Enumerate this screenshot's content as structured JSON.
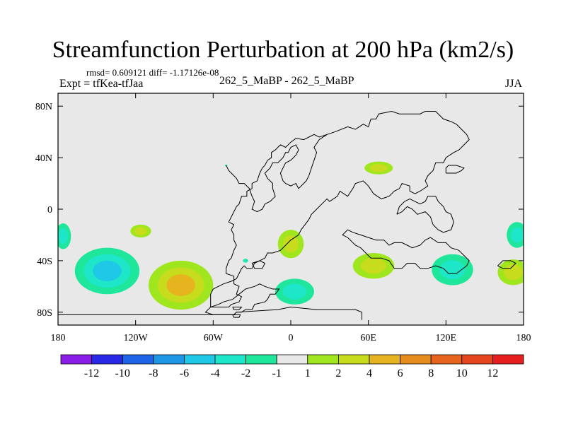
{
  "title": "Streamfunction Perturbation at 200 hPa (km2/s)",
  "stats_line": "rmsd= 0.609121 diff= -1.17126e-08",
  "expt_label": "Expt = tfKea-tfJaa",
  "experiment": "262_5_MaBP - 262_5_MaBP",
  "season": "JJA",
  "colors": {
    "background": "#e8e8e8",
    "coastline": "#000000"
  },
  "chart_data": {
    "type": "heatmap",
    "projection": "cylindrical-equidistant",
    "xlim": [
      -180,
      180
    ],
    "ylim": [
      -90,
      90
    ],
    "x_ticks": [
      {
        "value": -180,
        "label": "180"
      },
      {
        "value": -120,
        "label": "120W"
      },
      {
        "value": -60,
        "label": "60W"
      },
      {
        "value": 0,
        "label": "0"
      },
      {
        "value": 60,
        "label": "60E"
      },
      {
        "value": 120,
        "label": "120E"
      },
      {
        "value": 180,
        "label": "180"
      }
    ],
    "y_ticks": [
      {
        "value": 80,
        "label": "80N"
      },
      {
        "value": 40,
        "label": "40N"
      },
      {
        "value": 0,
        "label": "0"
      },
      {
        "value": -40,
        "label": "40S"
      },
      {
        "value": -80,
        "label": "80S"
      }
    ],
    "colorbar": {
      "labels": [
        "-12",
        "-10",
        "-8",
        "-6",
        "-4",
        "-2",
        "-1",
        "1",
        "2",
        "4",
        "6",
        "8",
        "10",
        "12"
      ],
      "colors": [
        "#8a1ee6",
        "#2828e6",
        "#1e64e6",
        "#1e96e6",
        "#1ec8e6",
        "#1ee6c8",
        "#1ee69a",
        "#e8e8e8",
        "#a0e61e",
        "#c8dc1e",
        "#e6b41e",
        "#e68c1e",
        "#e6641e",
        "#e6461e",
        "#e61e1e"
      ]
    },
    "features": [
      {
        "name": "South Pacific high",
        "lon": -85,
        "lat": -59,
        "rx": 25,
        "ry": 19,
        "value": 5
      },
      {
        "name": "South Pacific low",
        "lon": -142,
        "lat": -48,
        "rx": 25,
        "ry": 18,
        "value": -4
      },
      {
        "name": "Dateline low west",
        "lon": -176,
        "lat": -21,
        "rx": 6,
        "ry": 10,
        "value": -2
      },
      {
        "name": "Dateline low east",
        "lon": 175,
        "lat": -20,
        "rx": 8,
        "ry": 10,
        "value": -3
      },
      {
        "name": "Tropical Pacific high",
        "lon": -116,
        "lat": -17,
        "rx": 8,
        "ry": 5,
        "value": 2
      },
      {
        "name": "South Atlantic high",
        "lon": 0,
        "lat": -27,
        "rx": 10,
        "ry": 11,
        "value": 2
      },
      {
        "name": "Drake Passage low",
        "lon": 3,
        "lat": -64,
        "rx": 15,
        "ry": 10,
        "value": -2
      },
      {
        "name": "Madagascar high",
        "lon": 64,
        "lat": -44,
        "rx": 16,
        "ry": 10,
        "value": 2
      },
      {
        "name": "Indian Ocean low",
        "lon": 125,
        "lat": -47,
        "rx": 16,
        "ry": 12,
        "value": -2
      },
      {
        "name": "Southern Ocean high",
        "lon": 172,
        "lat": -49,
        "rx": 12,
        "ry": 10,
        "value": 2
      },
      {
        "name": "Asia high",
        "lon": 68,
        "lat": 32,
        "rx": 11,
        "ry": 5,
        "value": 2
      },
      {
        "name": "Atlantic speck low",
        "lon": -35,
        "lat": -40,
        "rx": 2,
        "ry": 1.5,
        "value": -2
      },
      {
        "name": "North Atlantic speck",
        "lon": -50,
        "lat": 34,
        "rx": 1,
        "ry": 0.6,
        "value": -2
      }
    ],
    "coastlines": [
      [
        [
          -44,
          -82
        ],
        [
          -42,
          -80
        ],
        [
          -38,
          -80
        ],
        [
          -35,
          -78
        ],
        [
          -30,
          -78
        ],
        [
          -28,
          -74
        ],
        [
          -20,
          -72
        ],
        [
          -18,
          -70
        ],
        [
          -16,
          -66
        ],
        [
          -12,
          -66
        ],
        [
          -9,
          -62
        ],
        [
          -14,
          -62
        ],
        [
          -20,
          -60
        ],
        [
          -24,
          -58
        ],
        [
          -28,
          -60
        ],
        [
          -35,
          -62
        ],
        [
          -40,
          -66
        ],
        [
          -45,
          -70
        ],
        [
          -52,
          -72
        ],
        [
          -56,
          -74
        ],
        [
          -62,
          -76
        ],
        [
          -66,
          -80
        ],
        [
          -60,
          -82
        ],
        [
          -50,
          -82
        ],
        [
          -44,
          -82
        ]
      ],
      [
        [
          -180,
          -86
        ],
        [
          -180,
          -82
        ],
        [
          -44,
          -82
        ],
        [
          -42,
          -80
        ],
        [
          -10,
          -78
        ],
        [
          0,
          -76
        ],
        [
          20,
          -78
        ],
        [
          50,
          -78
        ],
        [
          55,
          -80
        ],
        [
          55,
          -86
        ]
      ],
      [
        [
          -45,
          -76
        ],
        [
          -44,
          -78
        ],
        [
          -40,
          -78
        ],
        [
          -38,
          -76
        ],
        [
          -45,
          -76
        ]
      ],
      [
        [
          -45,
          -82
        ],
        [
          -44,
          -84
        ],
        [
          -40,
          -84
        ],
        [
          -39,
          -82
        ],
        [
          -45,
          -82
        ]
      ],
      [
        [
          -62,
          -76
        ],
        [
          -48,
          -76
        ],
        [
          -46,
          -74
        ],
        [
          -40,
          -72
        ],
        [
          -38,
          -68
        ],
        [
          -42,
          -66
        ],
        [
          -40,
          -60
        ],
        [
          -44,
          -58
        ],
        [
          -44,
          -52
        ],
        [
          -50,
          -50
        ],
        [
          -50,
          -46
        ],
        [
          -48,
          -40
        ],
        [
          -46,
          -38
        ],
        [
          -44,
          -32
        ],
        [
          -42,
          -28
        ],
        [
          -44,
          -24
        ],
        [
          -44,
          -20
        ],
        [
          -46,
          -16
        ],
        [
          -44,
          -12
        ],
        [
          -48,
          -10
        ],
        [
          -46,
          -6
        ],
        [
          -44,
          -2
        ],
        [
          -42,
          2
        ],
        [
          -40,
          4
        ],
        [
          -38,
          10
        ],
        [
          -34,
          10
        ],
        [
          -34,
          14
        ],
        [
          -30,
          16
        ],
        [
          -30,
          20
        ],
        [
          -26,
          22
        ],
        [
          -24,
          28
        ],
        [
          -22,
          32
        ],
        [
          -20,
          34
        ],
        [
          -18,
          38
        ],
        [
          -15,
          40
        ],
        [
          -15,
          44
        ],
        [
          -12,
          46
        ],
        [
          -10,
          48
        ],
        [
          -8,
          50
        ],
        [
          -4,
          48
        ],
        [
          0,
          52
        ],
        [
          4,
          55
        ],
        [
          10,
          54
        ],
        [
          14,
          56
        ],
        [
          18,
          58
        ],
        [
          22,
          56
        ],
        [
          28,
          58
        ],
        [
          34,
          60
        ],
        [
          44,
          64
        ],
        [
          50,
          62
        ],
        [
          56,
          66
        ],
        [
          60,
          64
        ],
        [
          62,
          70
        ],
        [
          66,
          70
        ],
        [
          68,
          74
        ],
        [
          78,
          76
        ],
        [
          84,
          74
        ],
        [
          100,
          74
        ],
        [
          104,
          76
        ],
        [
          112,
          76
        ],
        [
          118,
          70
        ],
        [
          124,
          68
        ],
        [
          128,
          66
        ],
        [
          132,
          62
        ],
        [
          136,
          58
        ],
        [
          138,
          54
        ],
        [
          134,
          50
        ],
        [
          130,
          46
        ],
        [
          126,
          44
        ],
        [
          120,
          40
        ],
        [
          118,
          36
        ],
        [
          112,
          36
        ],
        [
          110,
          30
        ],
        [
          106,
          26
        ],
        [
          104,
          22
        ],
        [
          106,
          18
        ],
        [
          100,
          14
        ],
        [
          96,
          12
        ],
        [
          92,
          14
        ],
        [
          92,
          18
        ],
        [
          86,
          20
        ],
        [
          84,
          16
        ],
        [
          80,
          14
        ],
        [
          76,
          10
        ],
        [
          70,
          8
        ],
        [
          64,
          12
        ],
        [
          60,
          18
        ],
        [
          56,
          22
        ],
        [
          50,
          20
        ],
        [
          48,
          16
        ],
        [
          44,
          10
        ],
        [
          38,
          14
        ],
        [
          36,
          10
        ],
        [
          30,
          6
        ],
        [
          28,
          8
        ],
        [
          24,
          4
        ],
        [
          20,
          0
        ],
        [
          16,
          -4
        ],
        [
          14,
          -8
        ],
        [
          8,
          -16
        ],
        [
          6,
          -20
        ],
        [
          0,
          -24
        ],
        [
          -4,
          -28
        ],
        [
          -8,
          -32
        ],
        [
          -14,
          -34
        ],
        [
          -18,
          -34
        ],
        [
          -20,
          -38
        ],
        [
          -24,
          -40
        ],
        [
          -28,
          -42
        ],
        [
          -30,
          -46
        ],
        [
          -34,
          -46
        ],
        [
          -36,
          -44
        ],
        [
          -38,
          -46
        ],
        [
          -40,
          -50
        ],
        [
          -42,
          -54
        ],
        [
          -46,
          -56
        ],
        [
          -52,
          -58
        ],
        [
          -56,
          -60
        ],
        [
          -60,
          -62
        ],
        [
          -62,
          -66
        ],
        [
          -62,
          -76
        ]
      ],
      [
        [
          -30,
          -42
        ],
        [
          -24,
          -40
        ],
        [
          -20,
          -42
        ],
        [
          -22,
          -46
        ],
        [
          -28,
          -46
        ],
        [
          -30,
          -42
        ]
      ],
      [
        [
          -50,
          34
        ],
        [
          -48,
          30
        ],
        [
          -44,
          26
        ],
        [
          -42,
          24
        ],
        [
          -40,
          20
        ],
        [
          -36,
          20
        ],
        [
          -32,
          16
        ],
        [
          -30,
          10
        ],
        [
          -28,
          6
        ],
        [
          -30,
          0
        ],
        [
          -26,
          -2
        ],
        [
          -22,
          0
        ],
        [
          -20,
          4
        ],
        [
          -16,
          6
        ],
        [
          -12,
          10
        ],
        [
          -14,
          16
        ],
        [
          -14,
          20
        ],
        [
          -18,
          24
        ],
        [
          -20,
          28
        ],
        [
          -16,
          32
        ],
        [
          -14,
          36
        ],
        [
          -10,
          36
        ],
        [
          -6,
          40
        ],
        [
          -4,
          44
        ],
        [
          -2,
          44
        ],
        [
          0,
          48
        ],
        [
          4,
          50
        ],
        [
          6,
          46
        ],
        [
          4,
          42
        ],
        [
          2,
          40
        ],
        [
          0,
          38
        ],
        [
          -4,
          36
        ],
        [
          -6,
          32
        ],
        [
          -8,
          28
        ],
        [
          -6,
          22
        ],
        [
          -4,
          20
        ],
        [
          0,
          18
        ],
        [
          4,
          20
        ],
        [
          6,
          16
        ],
        [
          10,
          20
        ],
        [
          12,
          22
        ],
        [
          14,
          26
        ],
        [
          16,
          32
        ],
        [
          18,
          38
        ],
        [
          20,
          44
        ],
        [
          18,
          48
        ],
        [
          22,
          54
        ],
        [
          28,
          58
        ]
      ],
      [
        [
          40,
          -20
        ],
        [
          44,
          -22
        ],
        [
          50,
          -28
        ],
        [
          54,
          -30
        ],
        [
          58,
          -34
        ],
        [
          62,
          -38
        ],
        [
          70,
          -38
        ],
        [
          76,
          -40
        ],
        [
          80,
          -46
        ],
        [
          86,
          -46
        ],
        [
          90,
          -42
        ],
        [
          96,
          -42
        ],
        [
          100,
          -46
        ],
        [
          106,
          -46
        ],
        [
          112,
          -44
        ],
        [
          118,
          -46
        ],
        [
          122,
          -50
        ],
        [
          128,
          -50
        ],
        [
          136,
          -44
        ],
        [
          138,
          -40
        ],
        [
          134,
          -36
        ],
        [
          130,
          -32
        ],
        [
          124,
          -30
        ],
        [
          120,
          -26
        ],
        [
          114,
          -26
        ],
        [
          108,
          -22
        ],
        [
          104,
          -24
        ],
        [
          100,
          -28
        ],
        [
          94,
          -30
        ],
        [
          90,
          -28
        ],
        [
          86,
          -26
        ],
        [
          80,
          -26
        ],
        [
          76,
          -28
        ],
        [
          72,
          -24
        ],
        [
          66,
          -24
        ],
        [
          60,
          -22
        ],
        [
          54,
          -20
        ],
        [
          48,
          -18
        ],
        [
          44,
          -16
        ],
        [
          40,
          -20
        ]
      ],
      [
        [
          82,
          -4
        ],
        [
          86,
          -2
        ],
        [
          90,
          2
        ],
        [
          94,
          0
        ],
        [
          98,
          -4
        ],
        [
          104,
          -2
        ],
        [
          108,
          -6
        ],
        [
          110,
          -12
        ],
        [
          114,
          -16
        ],
        [
          118,
          -18
        ],
        [
          124,
          -16
        ],
        [
          126,
          -10
        ],
        [
          124,
          -4
        ],
        [
          120,
          -2
        ],
        [
          118,
          2
        ],
        [
          114,
          6
        ],
        [
          112,
          10
        ],
        [
          106,
          10
        ],
        [
          104,
          6
        ],
        [
          100,
          4
        ],
        [
          96,
          6
        ],
        [
          92,
          8
        ],
        [
          88,
          6
        ],
        [
          84,
          2
        ],
        [
          82,
          -4
        ]
      ],
      [
        [
          120,
          28
        ],
        [
          128,
          28
        ],
        [
          132,
          30
        ],
        [
          134,
          32
        ],
        [
          128,
          34
        ],
        [
          122,
          34
        ],
        [
          120,
          32
        ],
        [
          120,
          28
        ]
      ],
      [
        [
          160,
          -44
        ],
        [
          164,
          -46
        ],
        [
          170,
          -46
        ],
        [
          174,
          -42
        ],
        [
          170,
          -40
        ],
        [
          164,
          -40
        ],
        [
          160,
          -44
        ]
      ]
    ]
  }
}
